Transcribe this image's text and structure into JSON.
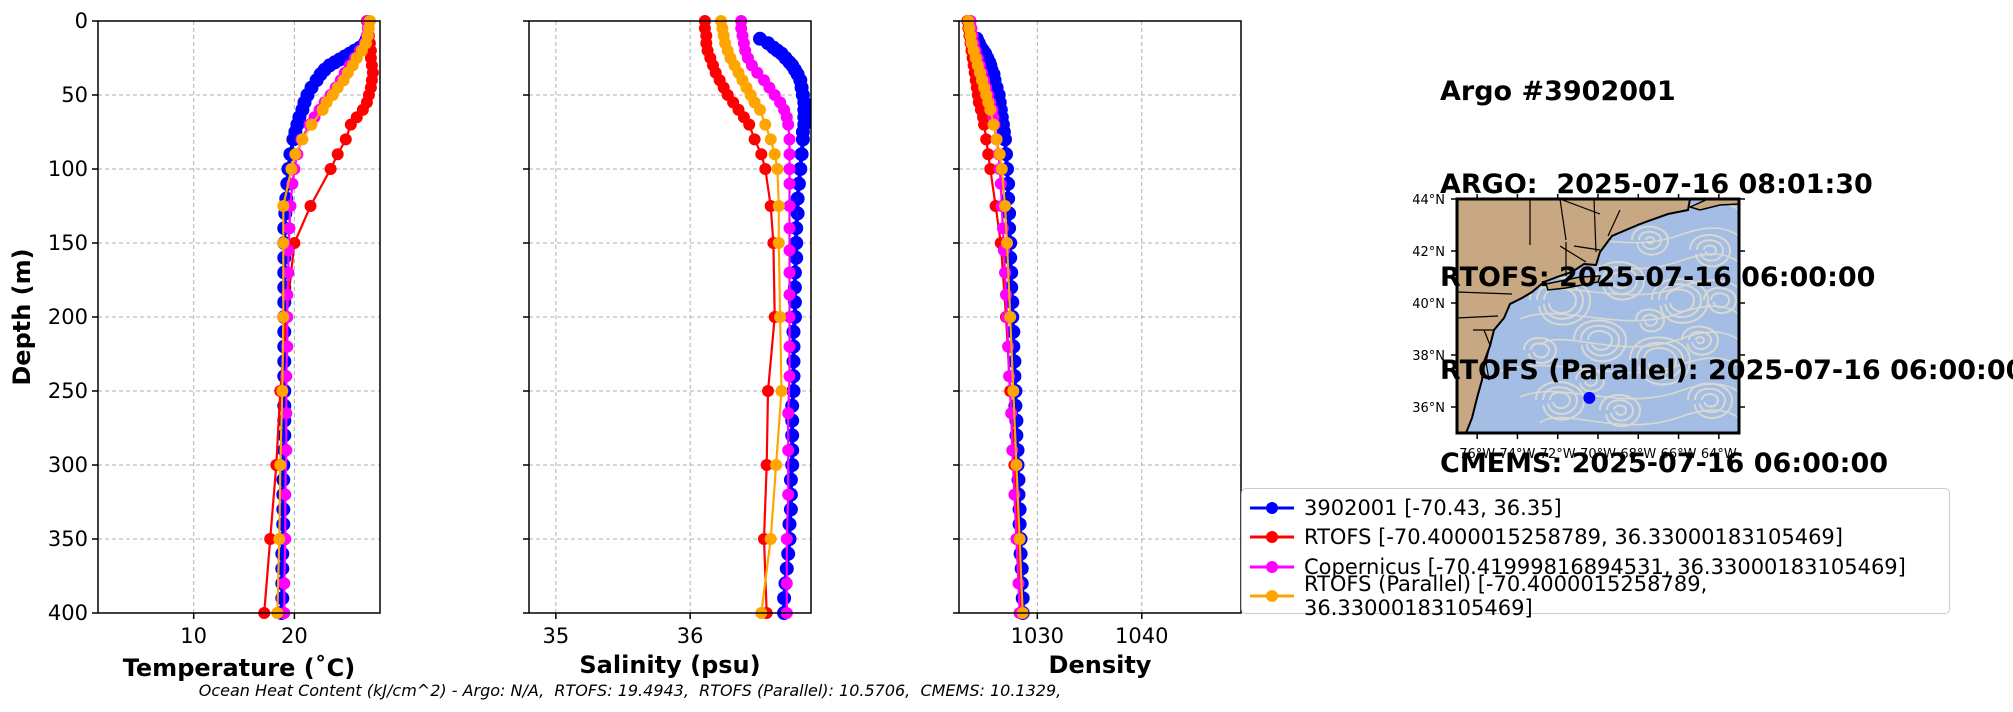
{
  "title": {
    "lines": [
      "Argo #3902001",
      "ARGO:  2025-07-16 08:01:30",
      "RTOFS: 2025-07-16 06:00:00",
      "RTOFS (Parallel): 2025-07-16 06:00:00",
      "CMEMS: 2025-07-16 06:00:00"
    ]
  },
  "footer": "Ocean Heat Content (kJ/cm^2) - Argo: N/A,  RTOFS: 19.4943,  RTOFS (Parallel): 10.5706,  CMEMS: 10.1329,",
  "colors": {
    "argo": "#0000ff",
    "rtofs": "#ff0000",
    "copernicus": "#ff00ff",
    "rtofs_parallel": "#ffa500",
    "land": "#c8a882",
    "ocean": "#a3bde5",
    "streamline": "#d9d9cf"
  },
  "legend": [
    {
      "key": "argo",
      "label": "3902001 [-70.43, 36.35]"
    },
    {
      "key": "rtofs",
      "label": "RTOFS [-70.4000015258789, 36.33000183105469]"
    },
    {
      "key": "copernicus",
      "label": "Copernicus [-70.41999816894531, 36.33000183105469]"
    },
    {
      "key": "rtofs_parallel",
      "label": "RTOFS (Parallel) [-70.4000015258789, 36.33000183105469]"
    }
  ],
  "chart_data": [
    {
      "type": "line",
      "xlabel": "Temperature (˚C)",
      "ylabel": "Depth (m)",
      "xlim": [
        0.5,
        28.5
      ],
      "ylim": [
        400,
        0
      ],
      "xticks": [
        10,
        20
      ],
      "yticks": [
        0,
        50,
        100,
        150,
        200,
        250,
        300,
        350,
        400
      ],
      "grid": true,
      "series": [
        {
          "name": "3902001",
          "key": "argo",
          "depth": [
            12,
            15,
            18,
            20,
            22,
            24,
            26,
            28,
            30,
            33,
            36,
            40,
            45,
            50,
            55,
            60,
            65,
            70,
            75,
            80,
            90,
            100,
            110,
            120,
            130,
            140,
            150,
            160,
            170,
            180,
            190,
            200,
            210,
            220,
            230,
            240,
            250,
            260,
            270,
            280,
            290,
            300,
            310,
            320,
            330,
            340,
            350,
            360,
            370,
            380,
            390,
            400
          ],
          "values": [
            27.2,
            27.0,
            26.5,
            26.0,
            25.5,
            25.0,
            24.5,
            24.0,
            23.5,
            23.0,
            22.6,
            22.2,
            21.7,
            21.3,
            21.0,
            20.8,
            20.5,
            20.3,
            20.1,
            19.9,
            19.6,
            19.4,
            19.3,
            19.2,
            19.1,
            19.0,
            19.0,
            19.0,
            19.0,
            19.0,
            19.0,
            19.0,
            19.0,
            19.0,
            19.0,
            19.0,
            19.0,
            19.0,
            19.0,
            19.0,
            19.0,
            18.9,
            18.9,
            18.9,
            18.9,
            18.9,
            18.9,
            18.8,
            18.8,
            18.8,
            18.8,
            18.7
          ]
        },
        {
          "name": "RTOFS",
          "key": "rtofs",
          "depth": [
            0,
            5,
            10,
            15,
            20,
            25,
            30,
            35,
            40,
            45,
            50,
            55,
            60,
            65,
            70,
            80,
            90,
            100,
            125,
            150,
            200,
            250,
            300,
            350,
            400
          ],
          "values": [
            27.2,
            27.3,
            27.4,
            27.5,
            27.6,
            27.6,
            27.7,
            27.8,
            27.7,
            27.6,
            27.4,
            27.2,
            26.8,
            26.2,
            25.6,
            25.1,
            24.3,
            23.6,
            21.6,
            20.0,
            19.2,
            18.6,
            18.2,
            17.6,
            17.0
          ]
        },
        {
          "name": "Copernicus",
          "key": "copernicus",
          "depth": [
            0,
            5,
            10,
            15,
            20,
            25,
            30,
            35,
            40,
            45,
            50,
            55,
            60,
            65,
            70,
            80,
            90,
            100,
            110,
            125,
            140,
            155,
            170,
            185,
            200,
            220,
            240,
            265,
            290,
            320,
            350,
            380,
            400
          ],
          "values": [
            27.3,
            27.3,
            27.2,
            27.0,
            26.5,
            26.0,
            25.5,
            25.0,
            24.6,
            24.1,
            23.6,
            23.0,
            22.5,
            22.0,
            21.5,
            20.7,
            20.3,
            20.0,
            19.8,
            19.6,
            19.5,
            19.4,
            19.4,
            19.3,
            19.3,
            19.3,
            19.2,
            19.2,
            19.2,
            19.1,
            19.1,
            19.0,
            19.0
          ]
        },
        {
          "name": "RTOFS (Parallel)",
          "key": "rtofs_parallel",
          "depth": [
            0,
            5,
            10,
            15,
            20,
            25,
            30,
            35,
            40,
            45,
            50,
            55,
            60,
            70,
            80,
            90,
            100,
            125,
            150,
            200,
            250,
            300,
            350,
            400
          ],
          "values": [
            27.5,
            27.4,
            27.3,
            27.1,
            26.7,
            26.2,
            25.8,
            25.3,
            24.9,
            24.3,
            23.8,
            23.2,
            22.8,
            21.7,
            20.8,
            20.1,
            19.7,
            18.9,
            18.9,
            18.9,
            18.8,
            18.6,
            18.5,
            18.3
          ]
        }
      ]
    },
    {
      "type": "line",
      "xlabel": "Salinity (psu)",
      "xlim": [
        34.8,
        36.9
      ],
      "ylim": [
        400,
        0
      ],
      "xticks": [
        35,
        36
      ],
      "grid": true,
      "series": [
        {
          "name": "3902001",
          "key": "argo",
          "depth": [
            12,
            15,
            18,
            20,
            22,
            25,
            28,
            30,
            33,
            36,
            40,
            45,
            50,
            55,
            60,
            65,
            70,
            75,
            80,
            90,
            100,
            110,
            120,
            130,
            140,
            150,
            160,
            170,
            180,
            190,
            200,
            210,
            220,
            230,
            240,
            250,
            260,
            270,
            280,
            290,
            300,
            310,
            320,
            330,
            340,
            350,
            360,
            370,
            380,
            390,
            400
          ],
          "values": [
            36.52,
            36.58,
            36.62,
            36.65,
            36.68,
            36.71,
            36.74,
            36.76,
            36.78,
            36.8,
            36.82,
            36.83,
            36.84,
            36.85,
            36.85,
            36.85,
            36.85,
            36.84,
            36.84,
            36.83,
            36.82,
            36.81,
            36.8,
            36.8,
            36.79,
            36.79,
            36.79,
            36.78,
            36.78,
            36.78,
            36.78,
            36.77,
            36.77,
            36.77,
            36.77,
            36.77,
            36.76,
            36.76,
            36.76,
            36.76,
            36.76,
            36.75,
            36.75,
            36.75,
            36.74,
            36.74,
            36.73,
            36.72,
            36.71,
            36.7,
            36.7
          ]
        },
        {
          "name": "RTOFS",
          "key": "rtofs",
          "depth": [
            0,
            5,
            10,
            15,
            20,
            25,
            30,
            35,
            40,
            45,
            50,
            55,
            60,
            65,
            70,
            80,
            90,
            100,
            125,
            150,
            200,
            250,
            300,
            350,
            400
          ],
          "values": [
            36.11,
            36.11,
            36.12,
            36.12,
            36.13,
            36.15,
            36.17,
            36.19,
            36.22,
            36.25,
            36.28,
            36.32,
            36.36,
            36.4,
            36.44,
            36.48,
            36.53,
            36.56,
            36.6,
            36.62,
            36.63,
            36.58,
            36.57,
            36.55,
            36.57
          ]
        },
        {
          "name": "Copernicus",
          "key": "copernicus",
          "depth": [
            0,
            5,
            10,
            15,
            20,
            25,
            30,
            35,
            40,
            45,
            50,
            55,
            60,
            65,
            70,
            80,
            90,
            100,
            110,
            125,
            140,
            155,
            170,
            185,
            200,
            220,
            240,
            265,
            290,
            320,
            350,
            380,
            400
          ],
          "values": [
            36.38,
            36.38,
            36.39,
            36.4,
            36.41,
            36.43,
            36.46,
            36.5,
            36.55,
            36.59,
            36.63,
            36.67,
            36.7,
            36.72,
            36.73,
            36.74,
            36.74,
            36.74,
            36.74,
            36.74,
            36.74,
            36.74,
            36.74,
            36.74,
            36.74,
            36.74,
            36.74,
            36.73,
            36.73,
            36.73,
            36.72,
            36.72,
            36.72
          ]
        },
        {
          "name": "RTOFS (Parallel)",
          "key": "rtofs_parallel",
          "depth": [
            0,
            5,
            10,
            15,
            20,
            25,
            30,
            35,
            40,
            45,
            50,
            55,
            60,
            70,
            80,
            90,
            100,
            125,
            150,
            200,
            250,
            300,
            350,
            400
          ],
          "values": [
            36.23,
            36.24,
            36.25,
            36.26,
            36.28,
            36.3,
            36.33,
            36.36,
            36.39,
            36.42,
            36.45,
            36.48,
            36.52,
            36.56,
            36.6,
            36.63,
            36.65,
            36.66,
            36.66,
            36.67,
            36.68,
            36.64,
            36.6,
            36.53
          ]
        }
      ]
    },
    {
      "type": "line",
      "xlabel": "Density",
      "xlim": [
        1022.5,
        1049.5
      ],
      "ylim": [
        400,
        0
      ],
      "xticks": [
        1030,
        1040
      ],
      "grid": true,
      "series": [
        {
          "name": "3902001",
          "key": "argo",
          "depth": [
            12,
            15,
            18,
            20,
            22,
            25,
            28,
            30,
            33,
            36,
            40,
            45,
            50,
            55,
            60,
            65,
            70,
            75,
            80,
            90,
            100,
            110,
            120,
            130,
            140,
            150,
            160,
            170,
            180,
            190,
            200,
            210,
            220,
            230,
            240,
            250,
            260,
            270,
            280,
            290,
            300,
            310,
            320,
            330,
            340,
            350,
            360,
            370,
            380,
            390,
            400
          ],
          "values": [
            1024.2,
            1024.4,
            1024.6,
            1024.8,
            1025.0,
            1025.2,
            1025.4,
            1025.5,
            1025.6,
            1025.8,
            1025.9,
            1026.1,
            1026.3,
            1026.4,
            1026.5,
            1026.6,
            1026.7,
            1026.8,
            1026.9,
            1027.0,
            1027.1,
            1027.2,
            1027.2,
            1027.3,
            1027.3,
            1027.4,
            1027.4,
            1027.5,
            1027.5,
            1027.6,
            1027.6,
            1027.7,
            1027.7,
            1027.8,
            1027.8,
            1027.9,
            1027.9,
            1028.0,
            1028.0,
            1028.1,
            1028.1,
            1028.2,
            1028.2,
            1028.3,
            1028.3,
            1028.4,
            1028.4,
            1028.5,
            1028.5,
            1028.6,
            1028.6
          ]
        },
        {
          "name": "RTOFS",
          "key": "rtofs",
          "depth": [
            0,
            5,
            10,
            15,
            20,
            25,
            30,
            35,
            40,
            45,
            50,
            55,
            60,
            65,
            70,
            80,
            90,
            100,
            125,
            150,
            200,
            250,
            300,
            350,
            400
          ],
          "values": [
            1023.3,
            1023.4,
            1023.5,
            1023.6,
            1023.7,
            1023.8,
            1023.9,
            1024.0,
            1024.1,
            1024.2,
            1024.3,
            1024.4,
            1024.6,
            1024.8,
            1024.9,
            1025.1,
            1025.3,
            1025.5,
            1026.0,
            1026.5,
            1027.0,
            1027.4,
            1027.8,
            1028.2,
            1028.5
          ]
        },
        {
          "name": "Copernicus",
          "key": "copernicus",
          "depth": [
            0,
            5,
            10,
            15,
            20,
            25,
            30,
            35,
            40,
            45,
            50,
            55,
            60,
            65,
            70,
            80,
            90,
            100,
            110,
            125,
            140,
            155,
            170,
            185,
            200,
            220,
            240,
            265,
            290,
            320,
            350,
            380,
            400
          ],
          "values": [
            1023.6,
            1023.7,
            1023.8,
            1023.9,
            1024.1,
            1024.3,
            1024.5,
            1024.7,
            1024.9,
            1025.1,
            1025.3,
            1025.5,
            1025.7,
            1025.8,
            1025.9,
            1026.1,
            1026.3,
            1026.4,
            1026.5,
            1026.6,
            1026.7,
            1026.8,
            1026.9,
            1027.0,
            1027.1,
            1027.2,
            1027.3,
            1027.5,
            1027.6,
            1027.8,
            1028.0,
            1028.2,
            1028.3
          ]
        },
        {
          "name": "RTOFS (Parallel)",
          "key": "rtofs_parallel",
          "depth": [
            0,
            5,
            10,
            15,
            20,
            25,
            30,
            35,
            40,
            45,
            50,
            55,
            60,
            70,
            80,
            90,
            100,
            125,
            150,
            200,
            250,
            300,
            350,
            400
          ],
          "values": [
            1023.4,
            1023.5,
            1023.6,
            1023.7,
            1023.9,
            1024.1,
            1024.3,
            1024.5,
            1024.7,
            1024.9,
            1025.1,
            1025.3,
            1025.5,
            1025.8,
            1026.1,
            1026.4,
            1026.6,
            1026.9,
            1027.1,
            1027.4,
            1027.7,
            1028.0,
            1028.3,
            1028.6
          ]
        }
      ]
    }
  ],
  "map": {
    "lon_range": [
      -77,
      -63
    ],
    "lat_range": [
      35,
      44
    ],
    "lon_ticks": [
      "76°W",
      "74°W",
      "72°W",
      "70°W",
      "68°W",
      "66°W",
      "64°W"
    ],
    "lon_tick_values": [
      -76,
      -74,
      -72,
      -70,
      -68,
      -66,
      -64
    ],
    "lat_ticks": [
      "44°N",
      "42°N",
      "40°N",
      "38°N",
      "36°N"
    ],
    "lat_tick_values": [
      44,
      42,
      40,
      38,
      36
    ],
    "float_position": {
      "lon": -70.43,
      "lat": 36.35
    }
  }
}
